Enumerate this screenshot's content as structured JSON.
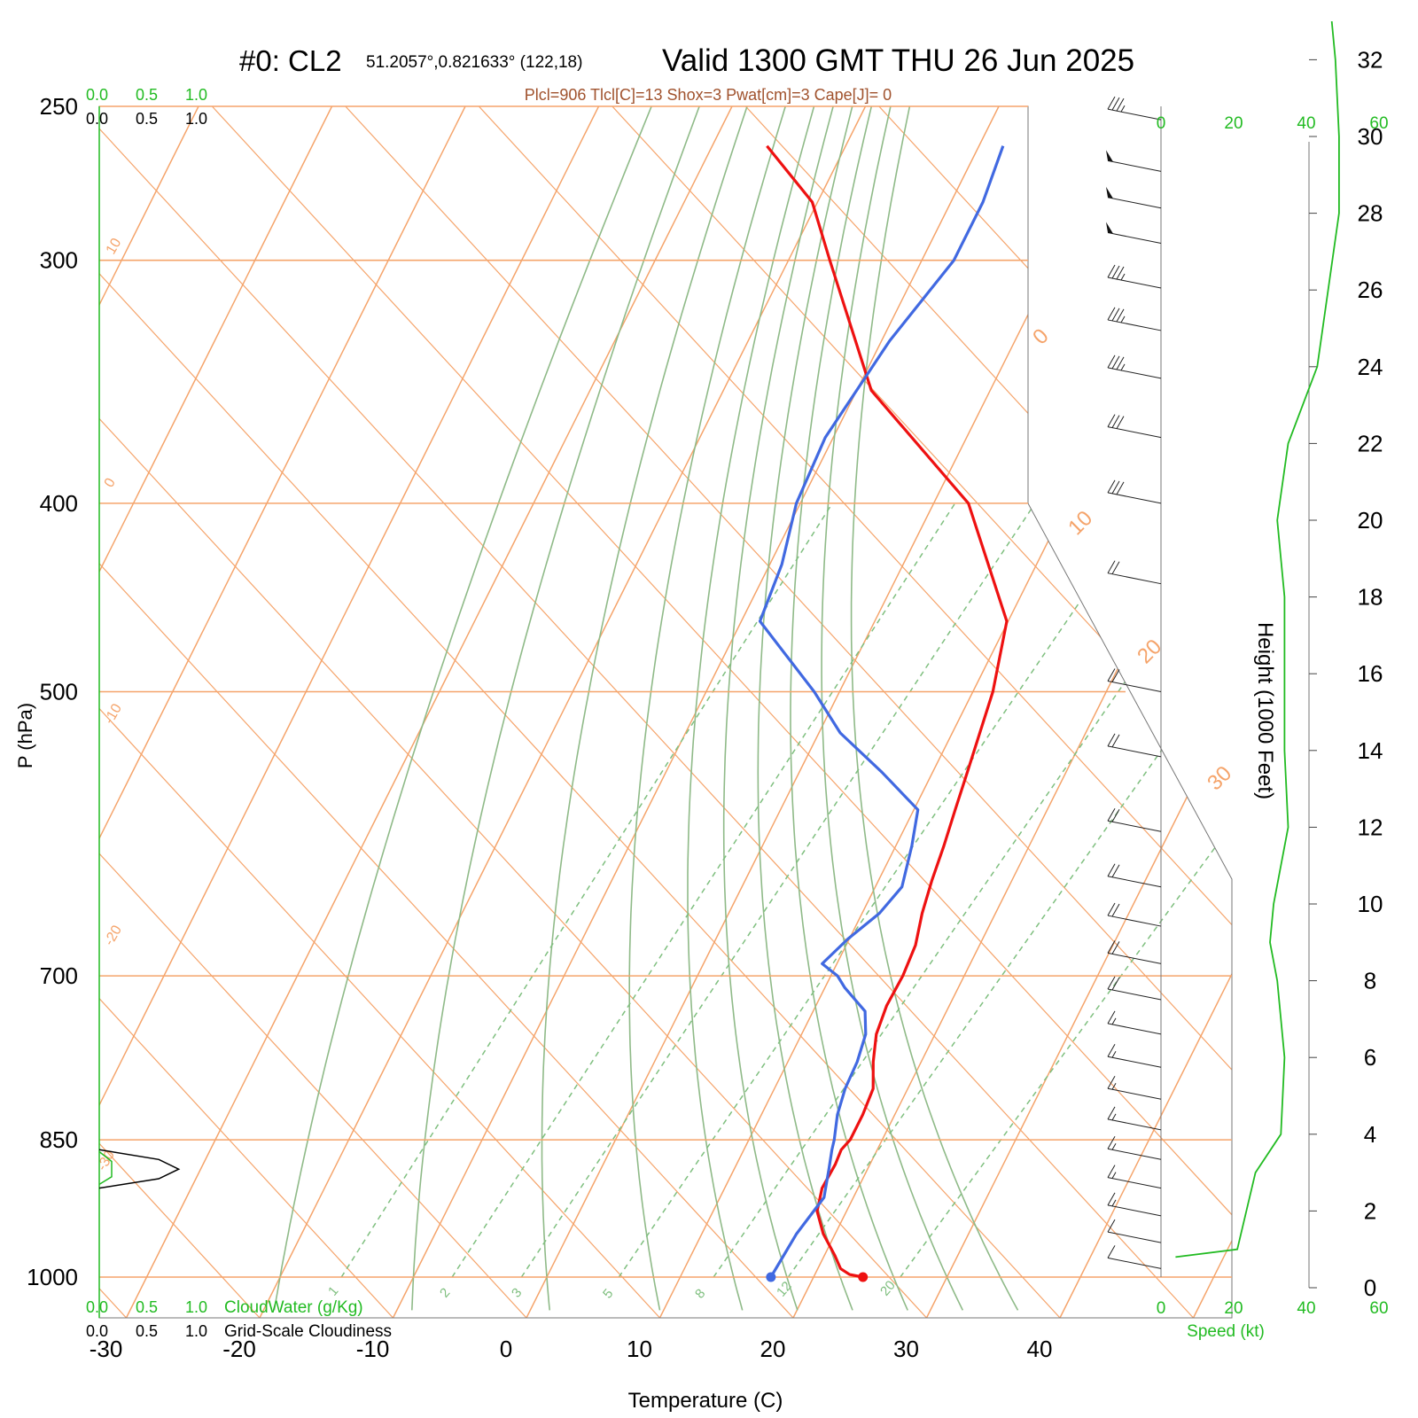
{
  "header": {
    "station": "#0: CL2",
    "coords": "51.2057°,0.821633° (122,18)",
    "valid": "Valid 1300 GMT THU 26 Jun 2025",
    "indices": "Plcl=906 Tlcl[C]=13 Shox=3 Pwat[cm]=3 Cape[J]= 0"
  },
  "colors": {
    "isotherm": "#f5a46b",
    "dry_adiabat": "#8fba88",
    "mixing_ratio": "#7fbf7f",
    "temperature": "#ee1111",
    "dewpoint": "#4169e1",
    "speed": "#22bb22",
    "indices": "#a0522d",
    "cloudwater": "#22bb22"
  },
  "labels": {
    "ylabel": "P (hPa)",
    "xlabel": "Temperature (C)",
    "height_label": "Height (1000 Feet)",
    "speed_label": "Speed (kt)",
    "cloudwater": "CloudWater (g/Kg)",
    "cloudiness": "Grid-Scale Cloudiness"
  },
  "scale_ticks": [
    "0.0",
    "0.5",
    "1.0"
  ],
  "speed_ticks": [
    "0",
    "20",
    "40",
    "60"
  ],
  "chart_data": {
    "type": "line",
    "title": "Valid 1300 GMT THU 26 Jun 2025",
    "xlabel": "Temperature (C)",
    "ylabel": "P (hPa)",
    "y_scale": "log",
    "pressure_ticks": [
      250,
      300,
      400,
      500,
      700,
      850,
      1000
    ],
    "temp_ticks": [
      -30,
      -20,
      -10,
      0,
      10,
      20,
      30,
      40
    ],
    "height_ticks": [
      0,
      2,
      4,
      6,
      8,
      10,
      12,
      14,
      16,
      18,
      20,
      22,
      24,
      26,
      28,
      30,
      32
    ],
    "isotherm_labels": [
      "10",
      "0",
      "-10",
      "-20",
      "-30",
      "0",
      "10",
      "20",
      "30"
    ],
    "mixing_ratio_labels": [
      "1",
      "2",
      "3",
      "5",
      "8",
      "12",
      "20"
    ],
    "series": [
      {
        "name": "Temperature",
        "points": [
          [
            1000,
            23.7
          ],
          [
            997,
            22.6
          ],
          [
            990,
            21.7
          ],
          [
            975,
            20.8
          ],
          [
            950,
            19.1
          ],
          [
            925,
            17.8
          ],
          [
            900,
            17.3
          ],
          [
            875,
            17.4
          ],
          [
            860,
            17.3
          ],
          [
            850,
            17.6
          ],
          [
            825,
            17.6
          ],
          [
            800,
            17.4
          ],
          [
            775,
            16.4
          ],
          [
            750,
            15.6
          ],
          [
            725,
            15.3
          ],
          [
            700,
            15.4
          ],
          [
            675,
            15.2
          ],
          [
            650,
            14.5
          ],
          [
            625,
            14.0
          ],
          [
            600,
            13.6
          ],
          [
            575,
            13.1
          ],
          [
            550,
            12.6
          ],
          [
            500,
            11.5
          ],
          [
            460,
            9.9
          ],
          [
            400,
            2.6
          ],
          [
            350,
            -8.9
          ],
          [
            300,
            -16.9
          ],
          [
            280,
            -20.4
          ],
          [
            262,
            -25.9
          ]
        ]
      },
      {
        "name": "Dewpoint",
        "points": [
          [
            1000,
            16.8
          ],
          [
            950,
            17.1
          ],
          [
            910,
            17.8
          ],
          [
            880,
            17.1
          ],
          [
            860,
            16.6
          ],
          [
            850,
            16.4
          ],
          [
            825,
            15.7
          ],
          [
            800,
            15.3
          ],
          [
            775,
            15.2
          ],
          [
            750,
            14.8
          ],
          [
            730,
            13.9
          ],
          [
            710,
            11.5
          ],
          [
            700,
            10.5
          ],
          [
            690,
            8.9
          ],
          [
            670,
            9.9
          ],
          [
            650,
            11.3
          ],
          [
            630,
            12.0
          ],
          [
            600,
            11.2
          ],
          [
            575,
            10.3
          ],
          [
            550,
            6.2
          ],
          [
            525,
            1.6
          ],
          [
            500,
            -1.9
          ],
          [
            460,
            -8.6
          ],
          [
            430,
            -9.1
          ],
          [
            400,
            -10.3
          ],
          [
            370,
            -10.6
          ],
          [
            330,
            -9.4
          ],
          [
            300,
            -7.6
          ],
          [
            280,
            -7.6
          ],
          [
            262,
            -8.2
          ]
        ]
      }
    ],
    "wind_barbs": [
      {
        "p": 254,
        "speed": 35
      },
      {
        "p": 270,
        "speed": 50
      },
      {
        "p": 282,
        "speed": 50
      },
      {
        "p": 294,
        "speed": 50
      },
      {
        "p": 310,
        "speed": 35
      },
      {
        "p": 326,
        "speed": 35
      },
      {
        "p": 345,
        "speed": 35
      },
      {
        "p": 370,
        "speed": 30
      },
      {
        "p": 400,
        "speed": 30
      },
      {
        "p": 440,
        "speed": 20
      },
      {
        "p": 500,
        "speed": 20
      },
      {
        "p": 540,
        "speed": 20
      },
      {
        "p": 590,
        "speed": 20
      },
      {
        "p": 630,
        "speed": 20
      },
      {
        "p": 660,
        "speed": 20
      },
      {
        "p": 690,
        "speed": 20
      },
      {
        "p": 720,
        "speed": 20
      },
      {
        "p": 750,
        "speed": 15
      },
      {
        "p": 780,
        "speed": 15
      },
      {
        "p": 810,
        "speed": 15
      },
      {
        "p": 840,
        "speed": 15
      },
      {
        "p": 870,
        "speed": 15
      },
      {
        "p": 900,
        "speed": 15
      },
      {
        "p": 930,
        "speed": 15
      },
      {
        "p": 960,
        "speed": 10
      },
      {
        "p": 990,
        "speed": 10
      }
    ],
    "wind_speed_profile": [
      {
        "h": 0.8,
        "speed": 4
      },
      {
        "h": 1.0,
        "speed": 21
      },
      {
        "h": 3.0,
        "speed": 26
      },
      {
        "h": 4.0,
        "speed": 33
      },
      {
        "h": 6.0,
        "speed": 34
      },
      {
        "h": 8.0,
        "speed": 32
      },
      {
        "h": 9.0,
        "speed": 30
      },
      {
        "h": 10.0,
        "speed": 31
      },
      {
        "h": 12.0,
        "speed": 35
      },
      {
        "h": 14.0,
        "speed": 34
      },
      {
        "h": 16.0,
        "speed": 34
      },
      {
        "h": 18.0,
        "speed": 34
      },
      {
        "h": 20.0,
        "speed": 32
      },
      {
        "h": 22.0,
        "speed": 35
      },
      {
        "h": 24.0,
        "speed": 43
      },
      {
        "h": 26.0,
        "speed": 46
      },
      {
        "h": 28.0,
        "speed": 49
      },
      {
        "h": 30.0,
        "speed": 49
      },
      {
        "h": 32.0,
        "speed": 48
      },
      {
        "h": 33.0,
        "speed": 47
      }
    ],
    "cloudiness_profile": [
      {
        "p": 860,
        "value": 0.0
      },
      {
        "p": 870,
        "value": 0.6
      },
      {
        "p": 880,
        "value": 0.8
      },
      {
        "p": 890,
        "value": 0.6
      },
      {
        "p": 900,
        "value": 0.0
      }
    ]
  }
}
